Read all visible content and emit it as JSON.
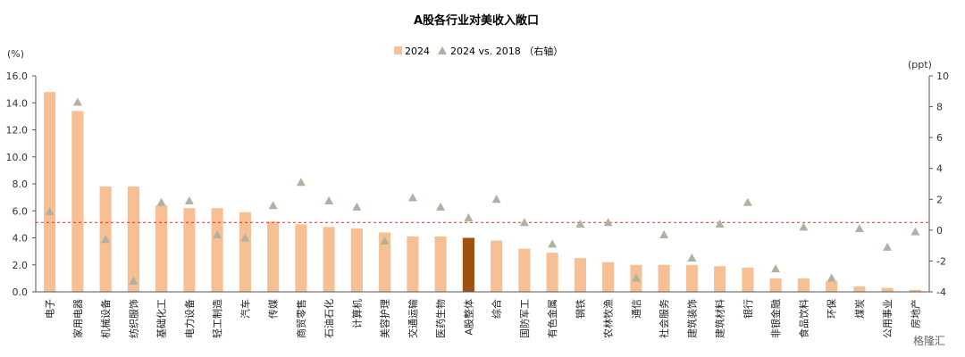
{
  "chart_data": {
    "type": "bar",
    "title": "A股各行业对美收入敞口",
    "left_unit": "(%)",
    "right_unit": "(ppt)",
    "left_ylim": [
      0,
      16
    ],
    "left_ticks": [
      "0.0",
      "2.0",
      "4.0",
      "6.0",
      "8.0",
      "10.0",
      "12.0",
      "14.0",
      "16.0"
    ],
    "right_ylim": [
      -4,
      10
    ],
    "right_ticks": [
      "-4",
      "-2",
      "0",
      "2",
      "4",
      "6",
      "8",
      "10"
    ],
    "grid": false,
    "legend_position": "top-center",
    "categories": [
      "电子",
      "家用电器",
      "机械设备",
      "纺织服饰",
      "基础化工",
      "电力设备",
      "轻工制造",
      "汽车",
      "传媒",
      "商贸零售",
      "石油石化",
      "计算机",
      "美容护理",
      "交通运输",
      "医药生物",
      "A股整体",
      "综合",
      "国防军工",
      "有色金属",
      "钢铁",
      "农林牧渔",
      "通信",
      "社会服务",
      "建筑装饰",
      "建筑材料",
      "银行",
      "非银金融",
      "食品饮料",
      "环保",
      "煤炭",
      "公用事业",
      "房地产"
    ],
    "series": [
      {
        "name": "2024",
        "type": "bar",
        "axis": "left",
        "values": [
          14.8,
          13.4,
          7.8,
          7.8,
          6.4,
          6.2,
          6.2,
          5.9,
          5.2,
          5.0,
          4.8,
          4.7,
          4.4,
          4.1,
          4.1,
          4.0,
          3.8,
          3.2,
          2.9,
          2.5,
          2.2,
          2.0,
          2.0,
          2.0,
          1.9,
          1.8,
          1.0,
          1.0,
          0.8,
          0.4,
          0.3,
          0.15
        ]
      },
      {
        "name": "2024 vs. 2018 （右轴）",
        "type": "scatter",
        "axis": "right",
        "values": [
          1.2,
          8.3,
          -0.6,
          -3.3,
          1.8,
          1.9,
          -0.3,
          -0.5,
          1.6,
          3.1,
          1.9,
          1.5,
          -0.7,
          2.1,
          1.5,
          0.8,
          2.0,
          0.5,
          -0.9,
          0.4,
          0.5,
          -3.1,
          -0.3,
          -1.8,
          0.4,
          1.8,
          -2.5,
          0.2,
          -3.1,
          0.1,
          -1.1,
          -0.1
        ]
      }
    ],
    "highlight_category": "A股整体",
    "reference_line": {
      "axis": "right",
      "value": 0.5,
      "style": "dashed"
    }
  },
  "colors": {
    "bar": "#F6C094",
    "bar_highlight": "#A0500F",
    "marker": "#B1B1A1",
    "ref_line": "#E03030",
    "axis": "#555555"
  },
  "watermark": "格隆汇"
}
